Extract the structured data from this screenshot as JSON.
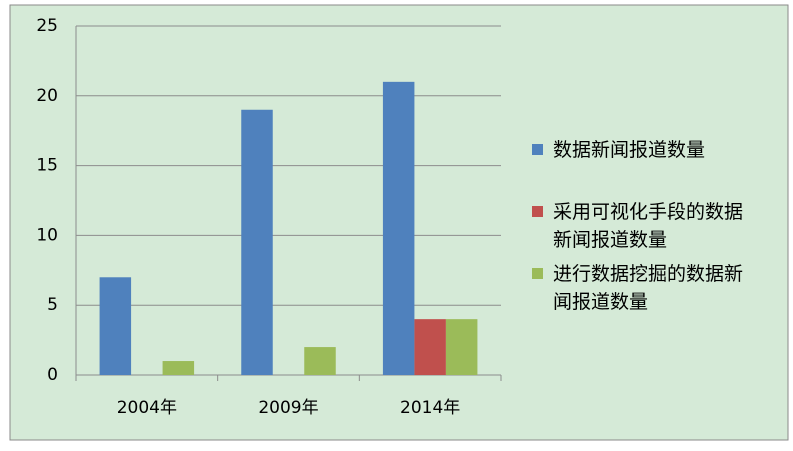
{
  "chart_data": {
    "type": "bar",
    "categories": [
      "2004年",
      "2009年",
      "2014年"
    ],
    "series": [
      {
        "name": "数据新闻报道数量",
        "color": "#4f81bd",
        "values": [
          7,
          19,
          21
        ]
      },
      {
        "name": "采用可视化手段的数据新闻报道数量",
        "color": "#c0504d",
        "values": [
          0,
          0,
          4
        ]
      },
      {
        "name": "进行数据挖掘的数据新闻报道数量",
        "color": "#9bbb59",
        "values": [
          1,
          2,
          4
        ]
      }
    ],
    "ylim": [
      0,
      25
    ],
    "yticks": [
      0,
      5,
      10,
      15,
      20,
      25
    ],
    "grid": true,
    "legend": "right"
  }
}
